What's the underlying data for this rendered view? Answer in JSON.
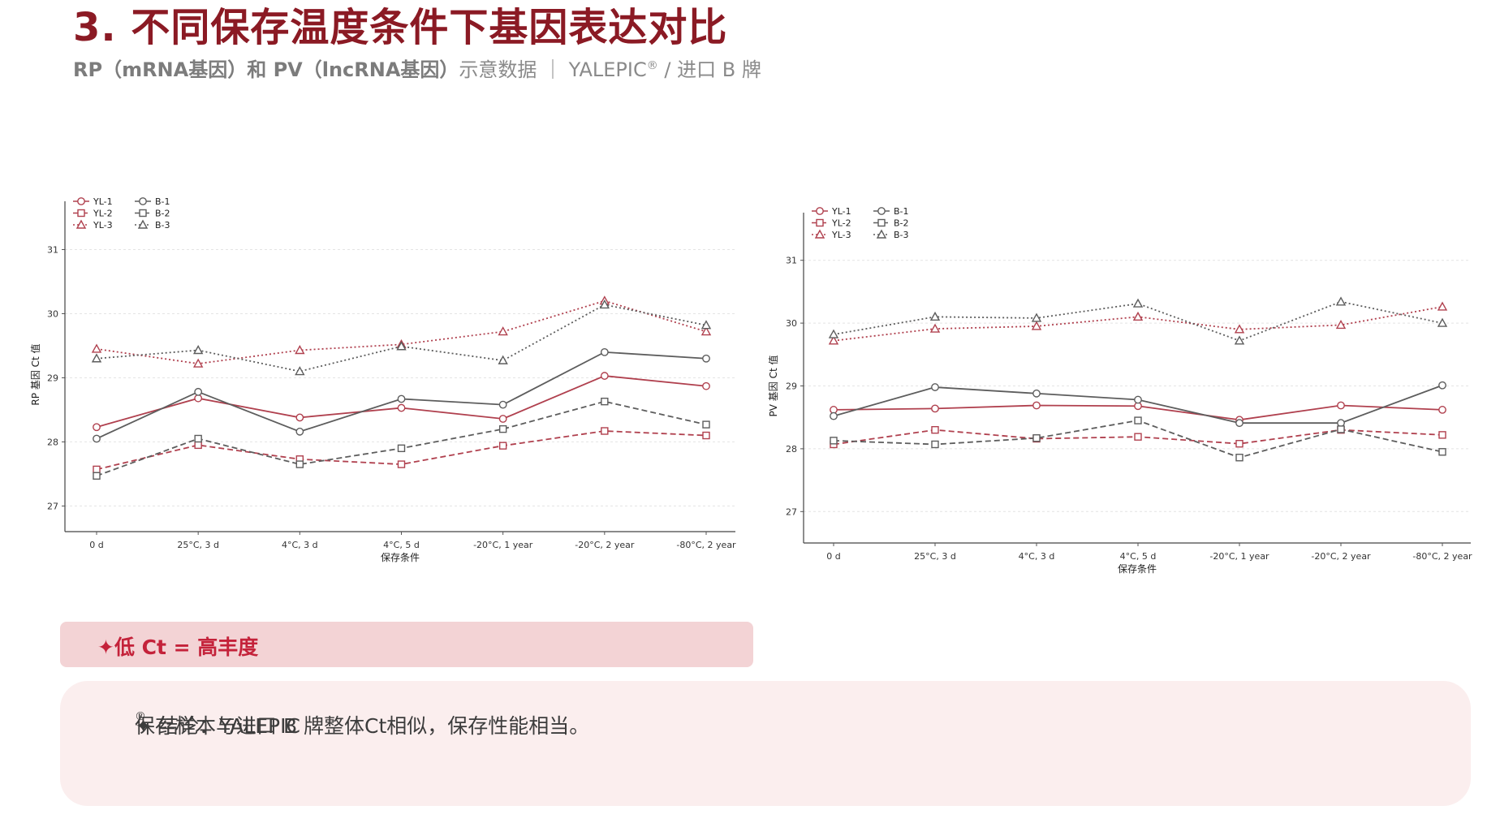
{
  "header": {
    "title": "3. 不同保存温度条件下基因表达对比",
    "subtitle_prefix": "RP（mRNA基因）和 PV（lncRNA基因）",
    "subtitle_mid": "示意数据 ｜ YALEPIC",
    "subtitle_reg": "®",
    "subtitle_suffix": " / 进口 B 牌"
  },
  "colors": {
    "yl": "#b0404e",
    "b": "#5d5d5d",
    "title": "#8b1a24",
    "accent": "#c4223a"
  },
  "chart_data": [
    {
      "id": "rp",
      "type": "line",
      "ylabel": "RP 基因 Ct 值",
      "xlabel": "保存条件",
      "categories": [
        "0 d",
        "25°C, 3 d",
        "4°C, 3 d",
        "4°C, 5 d",
        "-20°C, 1 year",
        "-20°C, 2 year",
        "-80°C, 2 year"
      ],
      "ylim": [
        26.6,
        31.5
      ],
      "yticks": [
        27,
        28,
        29,
        30,
        31
      ],
      "grid": true,
      "legend_position": "top-left",
      "series": [
        {
          "name": "YL-1",
          "group": "yl",
          "dash": "solid",
          "marker": "circle",
          "values": [
            28.23,
            28.68,
            28.38,
            28.53,
            28.36,
            29.03,
            28.87
          ]
        },
        {
          "name": "YL-2",
          "group": "yl",
          "dash": "dashed",
          "marker": "square",
          "values": [
            27.57,
            27.95,
            27.73,
            27.65,
            27.94,
            28.17,
            28.1
          ]
        },
        {
          "name": "YL-3",
          "group": "yl",
          "dash": "dotted",
          "marker": "triangle",
          "values": [
            29.45,
            29.22,
            29.43,
            29.52,
            29.72,
            30.2,
            29.72
          ]
        },
        {
          "name": "B-1",
          "group": "b",
          "dash": "solid",
          "marker": "circle",
          "values": [
            28.05,
            28.78,
            28.16,
            28.67,
            28.58,
            29.4,
            29.3
          ]
        },
        {
          "name": "B-2",
          "group": "b",
          "dash": "dashed",
          "marker": "square",
          "values": [
            27.47,
            28.05,
            27.65,
            27.9,
            28.2,
            28.63,
            28.27
          ]
        },
        {
          "name": "B-3",
          "group": "b",
          "dash": "dotted",
          "marker": "triangle",
          "values": [
            29.3,
            29.43,
            29.1,
            29.49,
            29.27,
            30.14,
            29.82
          ]
        }
      ]
    },
    {
      "id": "pv",
      "type": "line",
      "ylabel": "PV 基因 Ct 值",
      "xlabel": "保存条件",
      "categories": [
        "0 d",
        "25°C, 3 d",
        "4°C, 3 d",
        "4°C, 5 d",
        "-20°C, 1 year",
        "-20°C, 2 year",
        "-80°C, 2 year"
      ],
      "ylim": [
        26.5,
        31.5
      ],
      "yticks": [
        27,
        28,
        29,
        30,
        31
      ],
      "grid": true,
      "legend_position": "top-left",
      "series": [
        {
          "name": "YL-1",
          "group": "yl",
          "dash": "solid",
          "marker": "circle",
          "values": [
            28.62,
            28.64,
            28.69,
            28.68,
            28.46,
            28.69,
            28.62
          ]
        },
        {
          "name": "YL-2",
          "group": "yl",
          "dash": "dashed",
          "marker": "square",
          "values": [
            28.07,
            28.3,
            28.16,
            28.19,
            28.08,
            28.3,
            28.22
          ]
        },
        {
          "name": "YL-3",
          "group": "yl",
          "dash": "dotted",
          "marker": "triangle",
          "values": [
            29.72,
            29.91,
            29.95,
            30.1,
            29.9,
            29.97,
            30.26
          ]
        },
        {
          "name": "B-1",
          "group": "b",
          "dash": "solid",
          "marker": "circle",
          "values": [
            28.52,
            28.98,
            28.88,
            28.78,
            28.41,
            28.41,
            29.01
          ]
        },
        {
          "name": "B-2",
          "group": "b",
          "dash": "dashed",
          "marker": "square",
          "values": [
            28.13,
            28.07,
            28.17,
            28.45,
            27.86,
            28.31,
            27.95
          ]
        },
        {
          "name": "B-3",
          "group": "b",
          "dash": "dotted",
          "marker": "triangle",
          "values": [
            29.82,
            30.1,
            30.08,
            30.31,
            29.72,
            30.34,
            30.0
          ]
        }
      ]
    }
  ],
  "callout": {
    "text": "✦低 Ct = 高丰度"
  },
  "conclusion": {
    "prefix": "✦  结论：YALEPIC",
    "reg": "®",
    "suffix": " 保存样本与进口 B 牌整体Ct相似，保存性能相当。"
  }
}
